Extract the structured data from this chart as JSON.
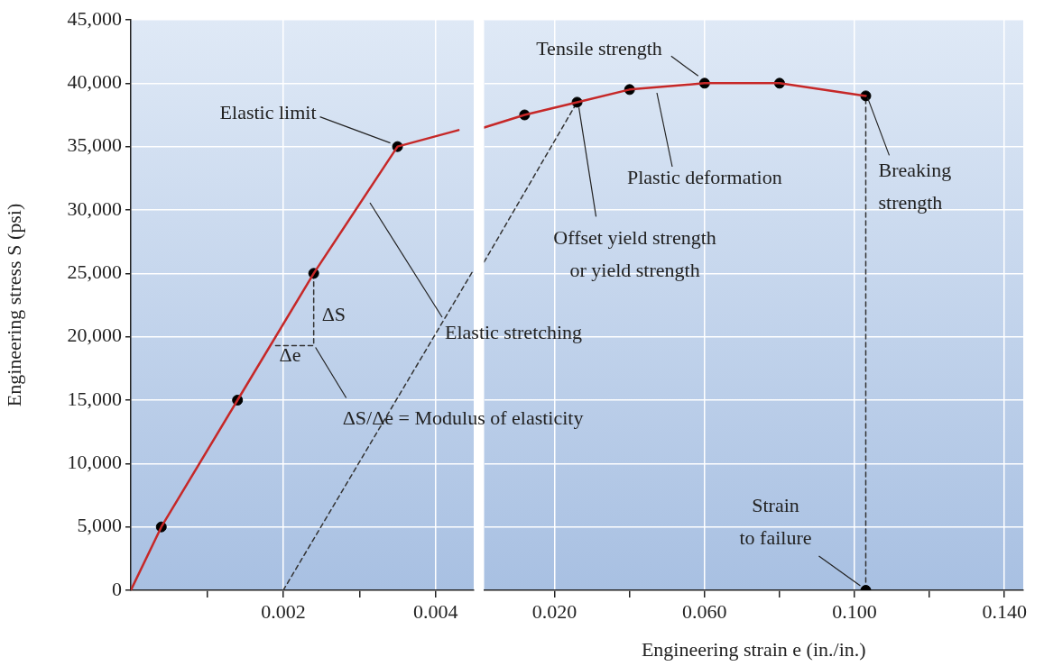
{
  "chart_data": [
    {
      "type": "line",
      "xlim": [
        0,
        0.0045
      ],
      "xticks": [
        {
          "value": 0.001,
          "label": null
        },
        0.002,
        {
          "value": 0.003,
          "label": null
        },
        0.004
      ],
      "ylim": [
        0,
        45000
      ],
      "yticks": [
        0,
        {
          "value": 5000,
          "label": "5,000"
        },
        {
          "value": 10000,
          "label": "10,000"
        },
        {
          "value": 15000,
          "label": "15,000"
        },
        {
          "value": 20000,
          "label": "20,000"
        },
        {
          "value": 25000,
          "label": "25,000"
        },
        {
          "value": 30000,
          "label": "30,000"
        },
        {
          "value": 35000,
          "label": "35,000"
        },
        {
          "value": 40000,
          "label": "40,000"
        },
        {
          "value": 45000,
          "label": "45,000"
        }
      ],
      "ylabel": "Engineering stress S (psi)",
      "grid": true,
      "series": [
        {
          "type": "line",
          "color": "#c62828",
          "marker": "none",
          "x": [
            0,
            0.0004,
            0.0014,
            0.0024,
            0.0035,
            0.0043
          ],
          "values": [
            0,
            5000,
            15000,
            25000,
            35000,
            36300
          ]
        },
        {
          "type": "scatter",
          "color": "#000000",
          "marker": "circle",
          "x": [
            0.0004,
            0.0014,
            0.0024,
            0.0035
          ],
          "values": [
            5000,
            15000,
            25000,
            35000
          ]
        },
        {
          "type": "line",
          "color": "#333333",
          "marker": "none",
          "line_style": "dashed",
          "x": [
            0.002,
            0.0045
          ],
          "values": [
            0,
            25300
          ]
        },
        {
          "type": "line",
          "color": "#333333",
          "marker": "none",
          "line_style": "dashed",
          "x": [
            0.0019,
            0.0024,
            0.0024
          ],
          "values": [
            19300,
            19300,
            25000
          ]
        }
      ],
      "annotations": [
        {
          "text": "Elastic limit",
          "x": 0.0035,
          "y": 35000
        },
        "Elastic stretching",
        {
          "text": "ΔS",
          "x": 0.0024,
          "y": 22000
        },
        {
          "text": "Δe",
          "x": 0.00215,
          "y": 19300
        },
        {
          "text": "ΔS/Δe = Modulus of elasticity",
          "x": 0.0024,
          "y": 19300
        }
      ]
    },
    {
      "type": "line",
      "xlim": [
        0.0012,
        0.145
      ],
      "xticks": [
        {
          "value": 0.02,
          "label": "0.020"
        },
        {
          "value": 0.04,
          "label": null
        },
        {
          "value": 0.06,
          "label": "0.060"
        },
        {
          "value": 0.08,
          "label": null
        },
        {
          "value": 0.1,
          "label": "0.100"
        },
        {
          "value": 0.12,
          "label": null
        },
        {
          "value": 0.14,
          "label": "0.140"
        }
      ],
      "ylim": [
        0,
        45000
      ],
      "yticks": [
        0,
        5000,
        10000,
        15000,
        20000,
        25000,
        30000,
        35000,
        40000,
        45000
      ],
      "tick_labels": "x",
      "xlabel": "Engineering strain e (in./in.)",
      "grid": true,
      "series": [
        {
          "type": "line",
          "color": "#c62828",
          "marker": "none",
          "x": [
            0.0012,
            0.012,
            0.026,
            0.04,
            0.06,
            0.08,
            0.103
          ],
          "values": [
            36500,
            37500,
            38500,
            39500,
            40000,
            40000,
            39000
          ]
        },
        {
          "type": "scatter",
          "color": "#000000",
          "marker": "circle",
          "x": [
            0.012,
            0.026,
            0.04,
            0.06,
            0.08,
            0.103,
            0.103
          ],
          "values": [
            37500,
            38500,
            39500,
            40000,
            40000,
            39000,
            0
          ]
        },
        {
          "type": "line",
          "color": "#333333",
          "marker": "none",
          "line_style": "dashed",
          "x": [
            0.0012,
            0.026
          ],
          "values": [
            25900,
            38500
          ]
        },
        {
          "type": "line",
          "color": "#333333",
          "marker": "none",
          "line_style": "dashed",
          "x": [
            0.103,
            0.103
          ],
          "values": [
            0,
            39000
          ]
        }
      ],
      "annotations": [
        {
          "text": "Tensile strength",
          "x": 0.06,
          "y": 40000
        },
        {
          "text": "Offset yield strength\nor yield strength",
          "x": 0.026,
          "y": 38500
        },
        "Plastic deformation",
        {
          "text": "Breaking\nstrength",
          "x": 0.103,
          "y": 39000
        },
        {
          "text": "Strain\nto failure",
          "x": 0.103,
          "y": 0
        }
      ]
    }
  ]
}
